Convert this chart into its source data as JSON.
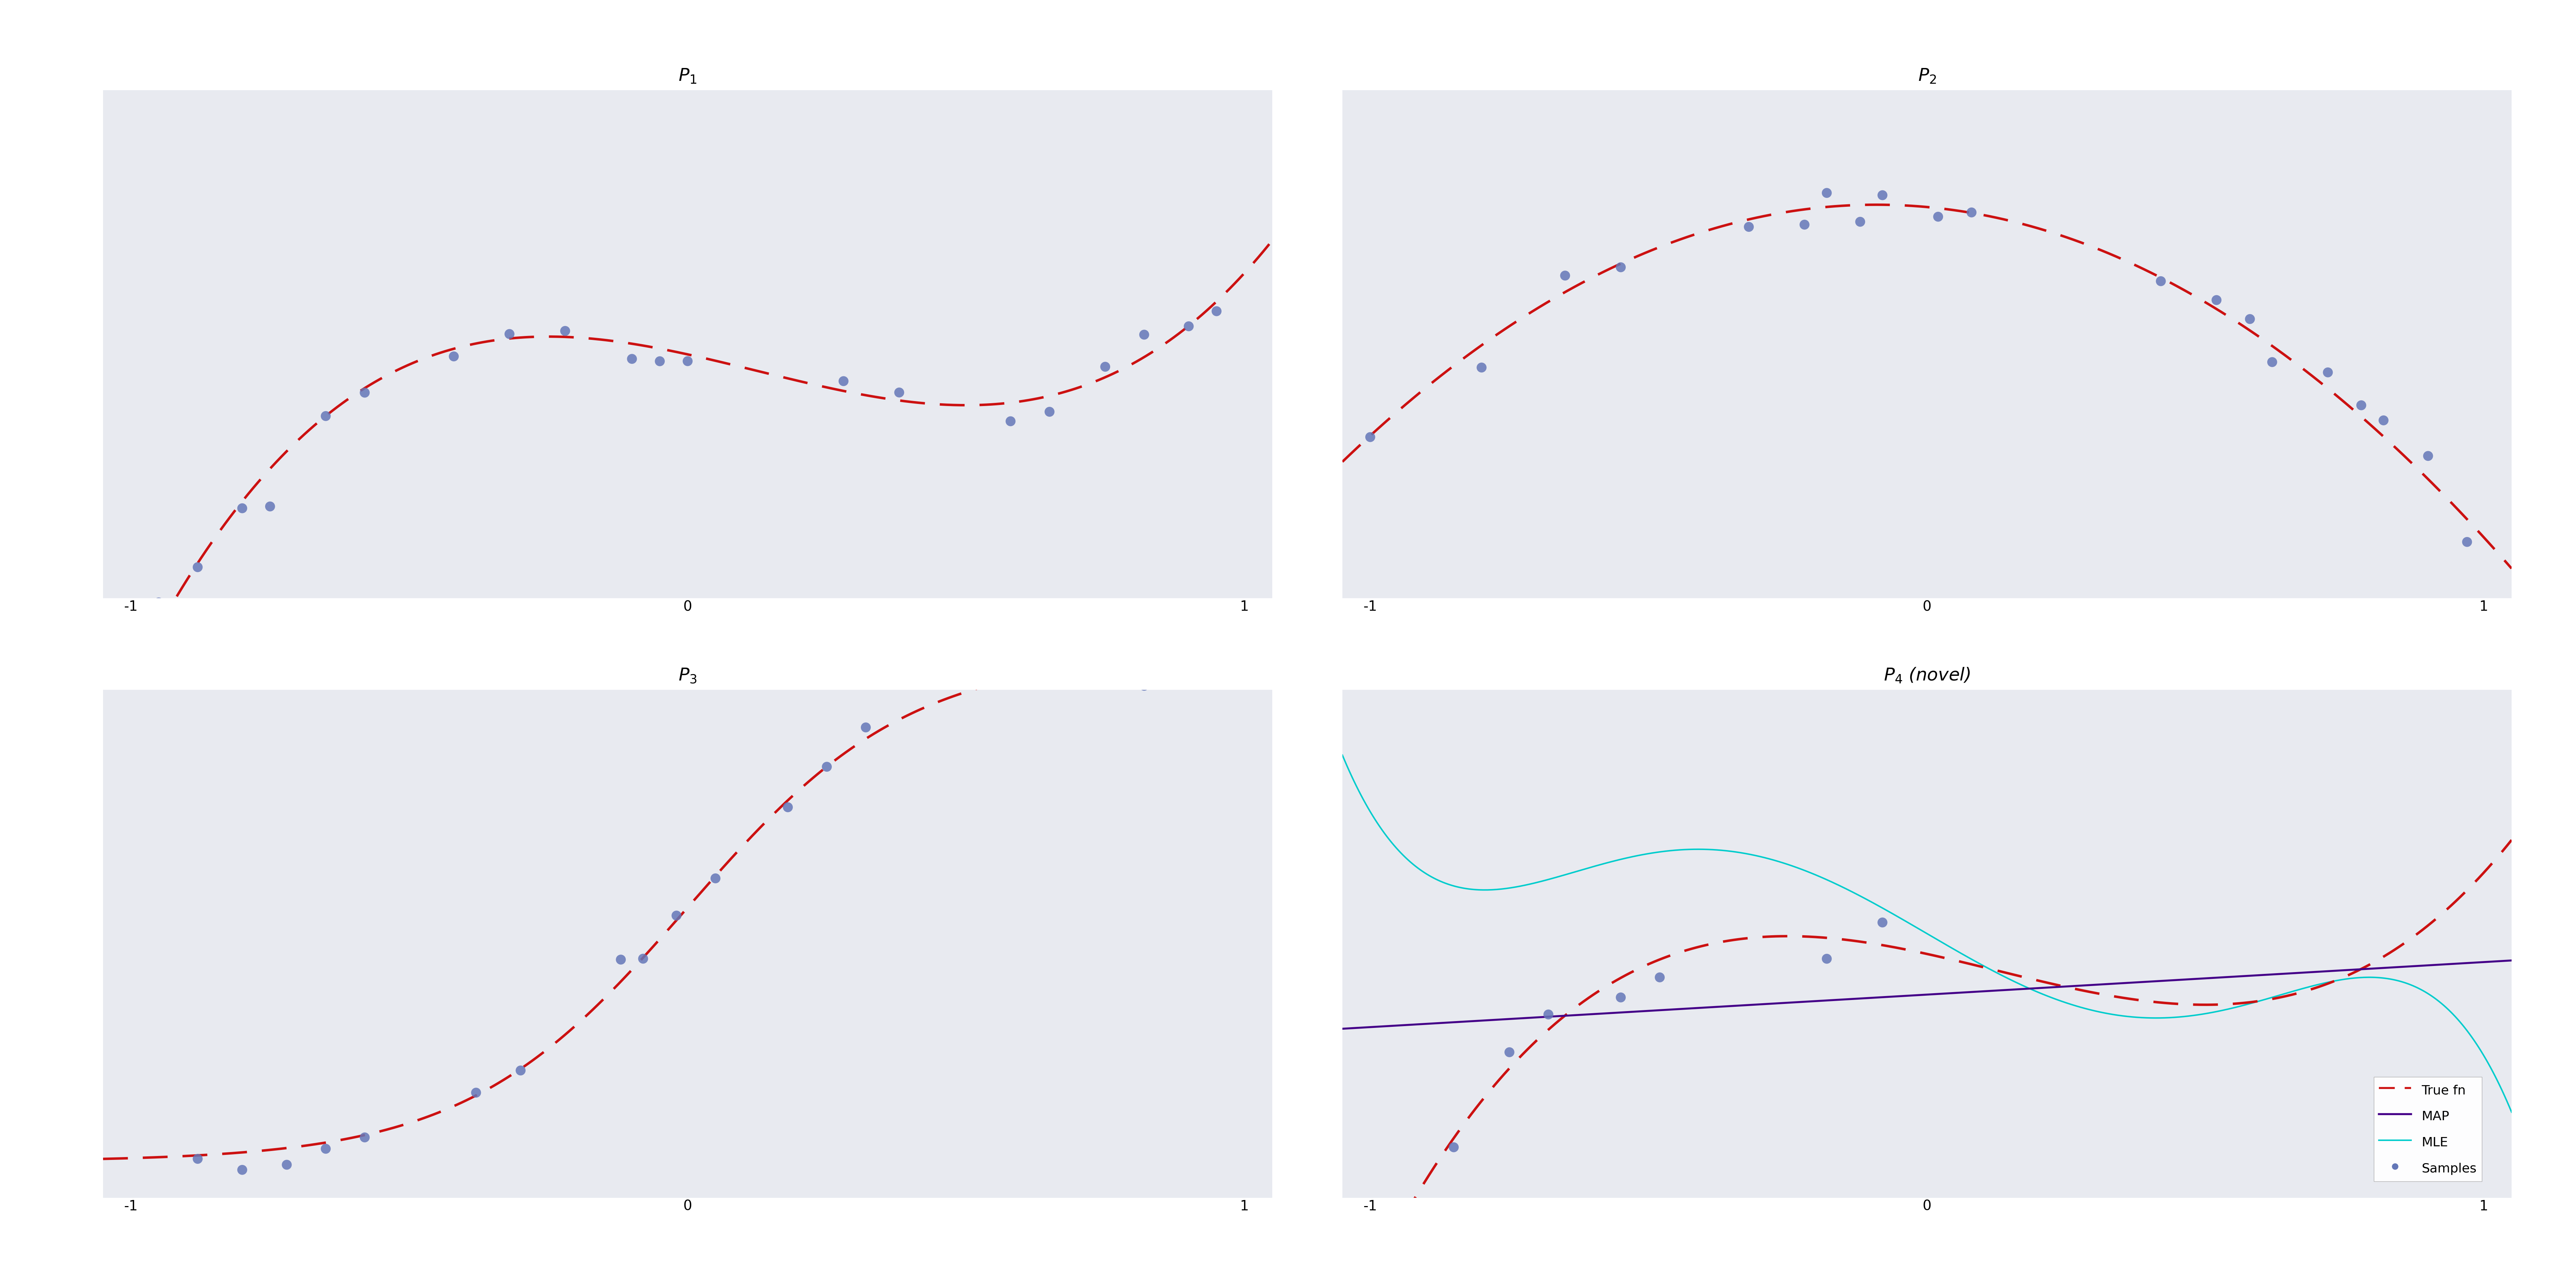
{
  "figure_bg": "#ffffff",
  "axes_bg": "#e8eaf0",
  "title_fontsize": 36,
  "tick_fontsize": 28,
  "scatter_color": "#6477b8",
  "scatter_size": 400,
  "scatter_alpha": 0.85,
  "true_fn_color": "#cc1111",
  "true_fn_lw": 5,
  "map_color": "#440088",
  "map_lw": 4,
  "mle_color": "#00cccc",
  "mle_lw": 3,
  "xlim": [
    -1.05,
    1.05
  ],
  "ylim_p1": [
    -0.55,
    0.7
  ],
  "ylim_p2": [
    -0.55,
    0.45
  ],
  "ylim_p3": [
    -0.8,
    0.6
  ],
  "ylim_p4": [
    -0.55,
    0.7
  ],
  "titles": [
    "$P_1$",
    "$P_2$",
    "$P_3$",
    "$P_4$ (novel)"
  ],
  "legend_labels": [
    "True fn",
    "MAP",
    "MLE",
    "Samples"
  ],
  "xticks": [
    -1,
    0,
    1
  ],
  "legend_fontsize": 26
}
